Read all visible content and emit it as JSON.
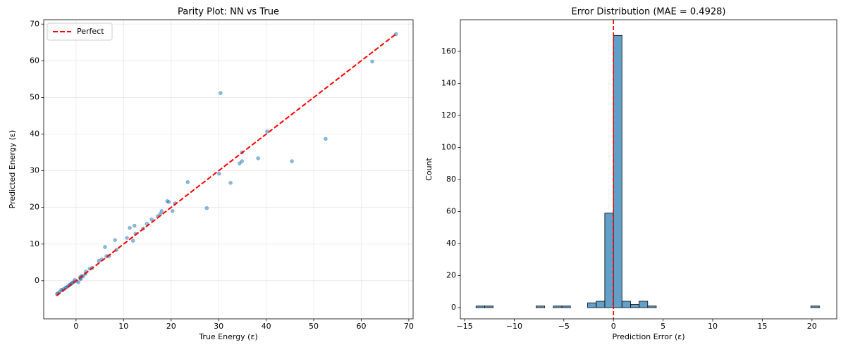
{
  "chart_data": [
    {
      "type": "scatter",
      "title": "Parity Plot: NN vs True",
      "x_label": "True Energy (ε)",
      "y_label": "Predicted Energy (ε)",
      "color": "#1f77b4",
      "grid": true,
      "legend": "upper left",
      "x": [
        67.3,
        62.3,
        30.4,
        52.5,
        45.4,
        38.3,
        34.9,
        34.4,
        34.9,
        32.5,
        30.1,
        27.5,
        23.5,
        40.2,
        20.8,
        20.3,
        19.5,
        19.2,
        18.0,
        17.7,
        17.2,
        15.9,
        14.9,
        14.1,
        12.3,
        11.3,
        12.0,
        10.7,
        12.5,
        8.2,
        8.5,
        6.9,
        6.1,
        6.4,
        5.4,
        4.8,
        3.4,
        2.9,
        2.1,
        1.97,
        1.5,
        0.9,
        0.9,
        0.5,
        1.2,
        -0.3,
        -0.55,
        -1.0,
        -1.4,
        -1.7,
        -2.2,
        -2.6,
        -3.1,
        -3.5,
        -3.8,
        -4.0,
        -0.8,
        -1.2,
        -2.0,
        -2.9,
        0.1,
        1.0
      ],
      "values": [
        67.3,
        59.8,
        51.2,
        38.7,
        32.6,
        33.4,
        35.0,
        32.0,
        32.6,
        26.7,
        29.2,
        19.8,
        26.9,
        40.7,
        21.1,
        19.0,
        21.5,
        21.7,
        19.0,
        18.2,
        17.6,
        16.7,
        15.5,
        14.2,
        15.0,
        14.4,
        10.9,
        11.7,
        12.8,
        11.1,
        8.4,
        6.7,
        9.2,
        6.7,
        5.8,
        5.4,
        3.5,
        3.3,
        2.5,
        1.9,
        1.2,
        0.6,
        1.0,
        -0.4,
        1.3,
        0.2,
        -0.4,
        -0.8,
        -1.2,
        -1.5,
        -1.9,
        -2.3,
        -2.5,
        -3.1,
        -3.5,
        -3.6,
        -0.6,
        -1.0,
        -1.8,
        -2.6,
        -0.1,
        0.5
      ],
      "line": {
        "name": "Perfect",
        "color": "#ff0000",
        "x": [
          -4.1,
          67.3
        ],
        "values": [
          -4.1,
          67.3
        ]
      },
      "xlim": [
        -6.8,
        70.9
      ],
      "ylim": [
        -10.4,
        71.2
      ],
      "xticks": [
        0,
        10,
        20,
        30,
        40,
        50,
        60,
        70
      ],
      "yticks": [
        {
          "value": 0,
          "label": "0"
        },
        10,
        20,
        30,
        40,
        50,
        60,
        70
      ]
    },
    {
      "type": "histogram",
      "title": "Error Distribution (MAE = 0.4928)",
      "x_label": "Prediction Error (ε)",
      "y_label": "Count",
      "color": "#1f77b4",
      "grid": false,
      "bins": [
        -13.85,
        -12.985,
        -12.12,
        -11.255,
        -10.39,
        -9.525,
        -8.66,
        -7.795,
        -6.93,
        -6.065,
        -5.2,
        -4.335,
        -3.47,
        -2.605,
        -1.74,
        -0.875,
        -0.01,
        0.855,
        1.72,
        2.585,
        3.45,
        4.315,
        5.18,
        6.045,
        6.91,
        7.775,
        8.64,
        9.505,
        10.37,
        11.235,
        12.1,
        12.965,
        13.83,
        14.695,
        15.56,
        16.425,
        17.29,
        18.155,
        19.02,
        19.885,
        20.75
      ],
      "values": [
        1,
        1,
        0,
        0,
        0,
        0,
        0,
        1,
        0,
        1,
        1,
        0,
        0,
        3,
        4,
        59,
        170,
        4,
        2,
        4,
        1,
        0,
        0,
        0,
        0,
        0,
        0,
        0,
        0,
        0,
        0,
        0,
        0,
        0,
        0,
        0,
        0,
        0,
        0,
        1
      ],
      "vline": {
        "x": 0,
        "color": "#ff0000"
      },
      "xlim": [
        -15.43,
        22.5
      ],
      "ylim": [
        -7,
        179.8
      ],
      "xticks": [
        {
          "value": -15,
          "label": "−15"
        },
        {
          "value": -10,
          "label": "−10"
        },
        {
          "value": -5,
          "label": "−5"
        },
        0,
        5,
        10,
        15,
        20
      ],
      "yticks": [
        0,
        20,
        40,
        60,
        80,
        100,
        120,
        140,
        160
      ]
    }
  ]
}
